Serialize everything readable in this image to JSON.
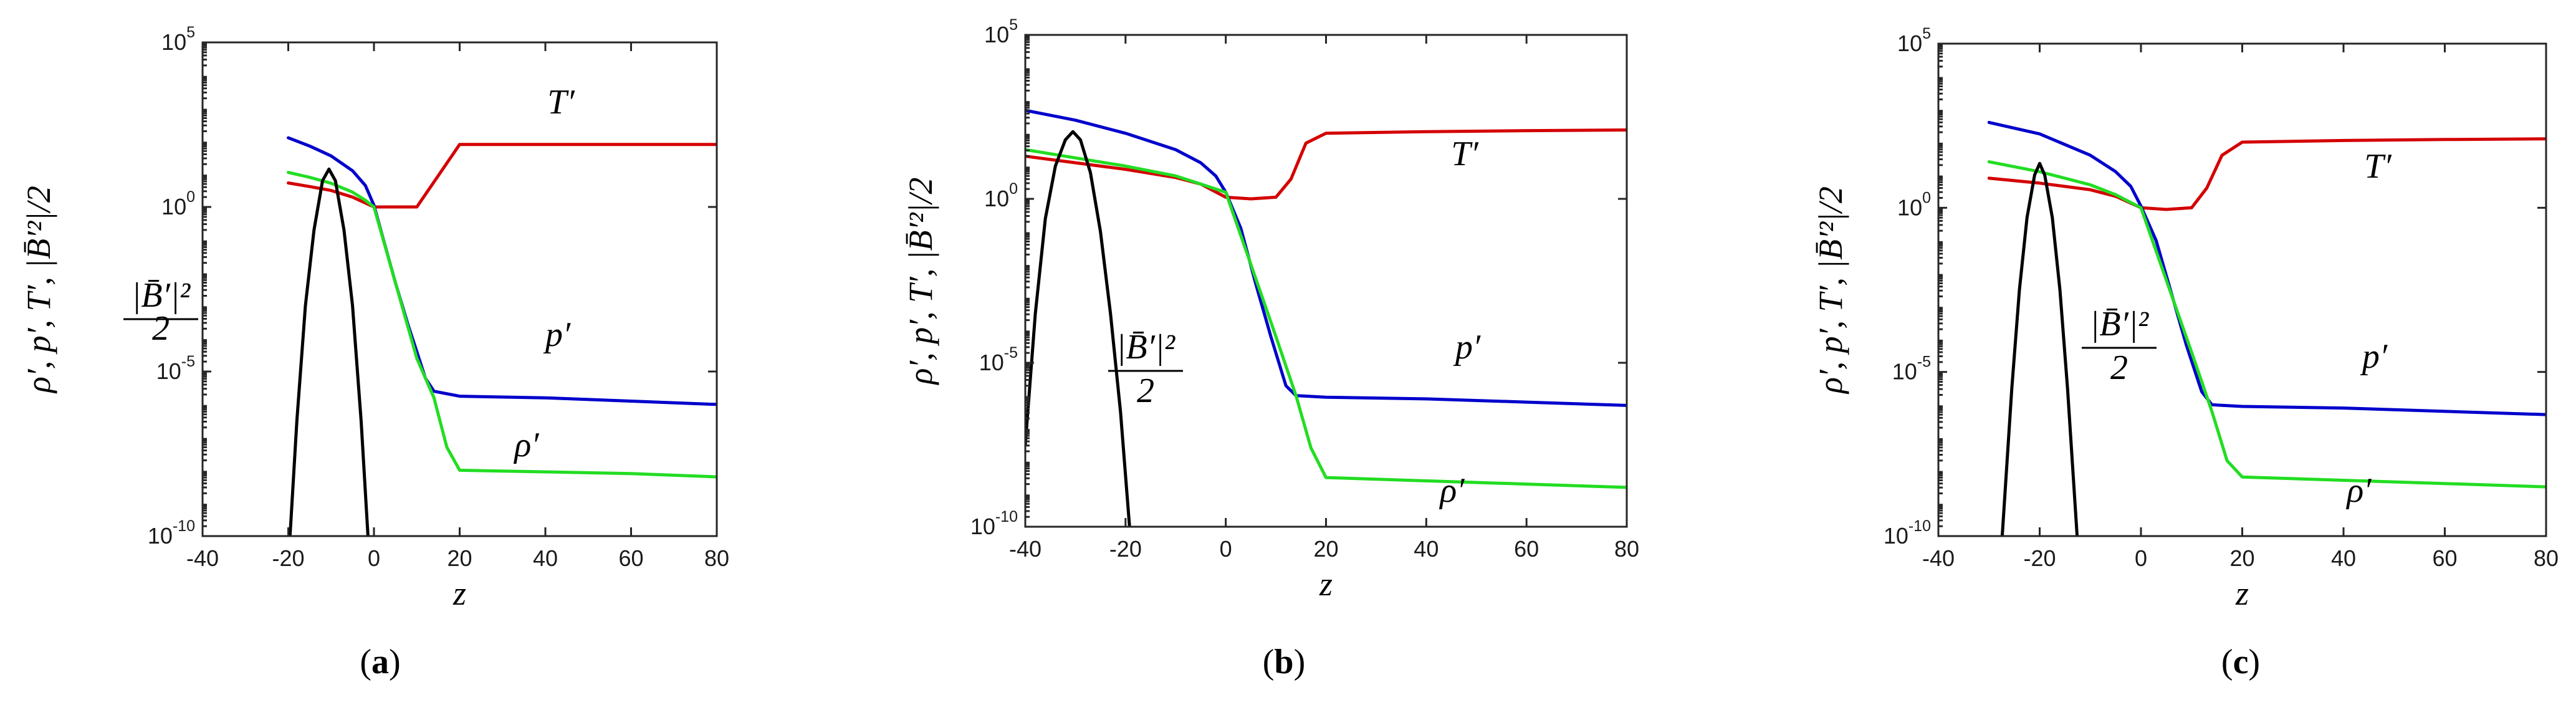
{
  "chart_data": [
    {
      "type": "line",
      "panel": "a",
      "caption": "(a)",
      "caption_letter": "a",
      "xlabel": "z",
      "ylabel": "ρ′,  p′,  T′,  |B̄′²|/2",
      "yscale": "log",
      "xlim": [
        -40,
        80
      ],
      "ylim_exponents": [
        -10,
        5
      ],
      "xticks": [
        "-40",
        "-20",
        "0",
        "20",
        "40",
        "60",
        "80"
      ],
      "yticks": [
        {
          "base": "10",
          "exp": "-10"
        },
        {
          "base": "10",
          "exp": "-5"
        },
        {
          "base": "10",
          "exp": "0"
        },
        {
          "base": "10",
          "exp": "5"
        }
      ],
      "series": [
        {
          "name": "T′",
          "color": "#d40000",
          "x": [
            -20,
            -15,
            -10,
            -5,
            0,
            10,
            20,
            40,
            60,
            80
          ],
          "log10_y": [
            0.73,
            0.62,
            0.5,
            0.3,
            0.0,
            0.0,
            1.9,
            1.9,
            1.9,
            1.9
          ]
        },
        {
          "name": "p′",
          "color": "#0000cc",
          "x": [
            -20,
            -15,
            -10,
            -5,
            -2,
            0,
            2,
            5,
            8,
            10,
            12,
            14,
            20,
            40,
            60,
            80
          ],
          "log10_y": [
            2.1,
            1.85,
            1.55,
            1.1,
            0.65,
            0.05,
            -0.9,
            -2.3,
            -3.6,
            -4.4,
            -5.2,
            -5.6,
            -5.75,
            -5.8,
            -5.9,
            -6.0
          ]
        },
        {
          "name": "ρ′",
          "color": "#22dd22",
          "x": [
            -20,
            -15,
            -10,
            -5,
            -2,
            0,
            5,
            10,
            14,
            17,
            20,
            40,
            60,
            80
          ],
          "log10_y": [
            1.05,
            0.9,
            0.72,
            0.45,
            0.2,
            0.0,
            -2.3,
            -4.6,
            -5.8,
            -7.3,
            -8.0,
            -8.05,
            -8.1,
            -8.2
          ]
        },
        {
          "name": "|B̄′|²/2",
          "color": "#000000",
          "x": [
            -19.6,
            -18,
            -16,
            -14,
            -12,
            -10.5,
            -9,
            -7,
            -5,
            -3,
            -1.4
          ],
          "log10_y": [
            -10,
            -6.5,
            -3.0,
            -0.7,
            0.8,
            1.15,
            0.8,
            -0.7,
            -3.0,
            -6.5,
            -10
          ]
        }
      ],
      "annotations": [
        {
          "text": "T′",
          "near": "upper-middle"
        },
        {
          "text": "p′",
          "near": "right-middle"
        },
        {
          "text": "ρ′",
          "near": "lower-middle"
        },
        {
          "text": "|B̄′|²",
          "text2": "2",
          "near": "left-middle"
        }
      ]
    },
    {
      "type": "line",
      "panel": "b",
      "caption": "(b)",
      "caption_letter": "b",
      "xlabel": "z",
      "ylabel": "ρ′,  p′,  T′,  |B̄′²|/2",
      "yscale": "log",
      "xlim": [
        -40,
        80
      ],
      "ylim_exponents": [
        -10,
        5
      ],
      "xticks": [
        "-40",
        "-20",
        "0",
        "20",
        "40",
        "60",
        "80"
      ],
      "yticks": [
        {
          "base": "10",
          "exp": "-10"
        },
        {
          "base": "10",
          "exp": "-5"
        },
        {
          "base": "10",
          "exp": "0"
        },
        {
          "base": "10",
          "exp": "5"
        }
      ],
      "series": [
        {
          "name": "T′",
          "color": "#d40000",
          "x": [
            -40,
            -30,
            -20,
            -10,
            -5,
            0,
            5,
            10,
            13,
            16,
            20,
            40,
            60,
            80
          ],
          "log10_y": [
            1.3,
            1.1,
            0.9,
            0.65,
            0.45,
            0.05,
            0.0,
            0.05,
            0.6,
            1.7,
            2.0,
            2.05,
            2.08,
            2.1
          ]
        },
        {
          "name": "p′",
          "color": "#0000cc",
          "x": [
            -40,
            -30,
            -20,
            -10,
            -5,
            -2,
            0,
            3,
            6,
            9,
            12,
            14,
            20,
            40,
            60,
            80
          ],
          "log10_y": [
            2.7,
            2.4,
            2.0,
            1.5,
            1.1,
            0.7,
            0.2,
            -0.9,
            -2.6,
            -4.2,
            -5.7,
            -6.0,
            -6.05,
            -6.1,
            -6.2,
            -6.3
          ]
        },
        {
          "name": "ρ′",
          "color": "#22dd22",
          "x": [
            -40,
            -30,
            -20,
            -10,
            -5,
            0,
            5,
            10,
            14,
            17,
            20,
            40,
            60,
            80
          ],
          "log10_y": [
            1.5,
            1.25,
            1.0,
            0.7,
            0.45,
            0.2,
            -2.0,
            -4.2,
            -6.0,
            -7.6,
            -8.5,
            -8.6,
            -8.7,
            -8.8
          ]
        },
        {
          "name": "|B̄′|²/2",
          "color": "#000000",
          "x": [
            -40,
            -38,
            -36,
            -34,
            -32,
            -30.5,
            -29,
            -27,
            -25,
            -23,
            -21,
            -19.2
          ],
          "log10_y": [
            -7.5,
            -3.5,
            -0.6,
            1.0,
            1.8,
            2.05,
            1.8,
            0.8,
            -1.0,
            -3.5,
            -6.5,
            -10
          ]
        }
      ],
      "annotations": [
        {
          "text": "T′",
          "near": "upper-middle"
        },
        {
          "text": "p′",
          "near": "right-middle"
        },
        {
          "text": "ρ′",
          "near": "lower-middle"
        },
        {
          "text": "|B̄′|²",
          "text2": "2",
          "near": "left-middle"
        }
      ]
    },
    {
      "type": "line",
      "panel": "c",
      "caption": "(c)",
      "caption_letter": "c",
      "xlabel": "z",
      "ylabel": "ρ′,  p′,  T′,  |B̄′²|/2",
      "yscale": "log",
      "xlim": [
        -40,
        80
      ],
      "ylim_exponents": [
        -10,
        5
      ],
      "xticks": [
        "-40",
        "-20",
        "0",
        "20",
        "40",
        "60",
        "80"
      ],
      "yticks": [
        {
          "base": "10",
          "exp": "-10"
        },
        {
          "base": "10",
          "exp": "-5"
        },
        {
          "base": "10",
          "exp": "0"
        },
        {
          "base": "10",
          "exp": "5"
        }
      ],
      "series": [
        {
          "name": "T′",
          "color": "#d40000",
          "x": [
            -30,
            -20,
            -10,
            -5,
            0,
            5,
            10,
            13,
            16,
            20,
            40,
            60,
            80
          ],
          "log10_y": [
            0.9,
            0.75,
            0.55,
            0.35,
            0.0,
            -0.05,
            0.0,
            0.6,
            1.6,
            2.0,
            2.05,
            2.08,
            2.1
          ]
        },
        {
          "name": "p′",
          "color": "#0000cc",
          "x": [
            -30,
            -20,
            -10,
            -5,
            -2,
            0,
            3,
            6,
            9,
            12,
            14,
            20,
            40,
            60,
            80
          ],
          "log10_y": [
            2.6,
            2.25,
            1.6,
            1.1,
            0.65,
            0.05,
            -1.0,
            -2.6,
            -4.2,
            -5.6,
            -6.0,
            -6.05,
            -6.1,
            -6.2,
            -6.3
          ]
        },
        {
          "name": "ρ′",
          "color": "#22dd22",
          "x": [
            -30,
            -20,
            -10,
            -5,
            0,
            5,
            10,
            14,
            17,
            20,
            40,
            60,
            80
          ],
          "log10_y": [
            1.4,
            1.1,
            0.7,
            0.4,
            0.0,
            -2.2,
            -4.4,
            -6.2,
            -7.7,
            -8.2,
            -8.3,
            -8.4,
            -8.5
          ]
        },
        {
          "name": "|B̄′|²/2",
          "color": "#000000",
          "x": [
            -27.4,
            -25.5,
            -24,
            -22.5,
            -21,
            -20,
            -19,
            -17.5,
            -16,
            -14.5,
            -12.6
          ],
          "log10_y": [
            -10,
            -5.5,
            -2.5,
            -0.3,
            1.0,
            1.35,
            1.0,
            -0.3,
            -2.5,
            -5.5,
            -10
          ]
        }
      ],
      "annotations": [
        {
          "text": "T′",
          "near": "upper-middle"
        },
        {
          "text": "p′",
          "near": "right-middle"
        },
        {
          "text": "ρ′",
          "near": "lower-middle"
        },
        {
          "text": "|B̄′|²",
          "text2": "2",
          "near": "left-middle"
        }
      ]
    }
  ]
}
